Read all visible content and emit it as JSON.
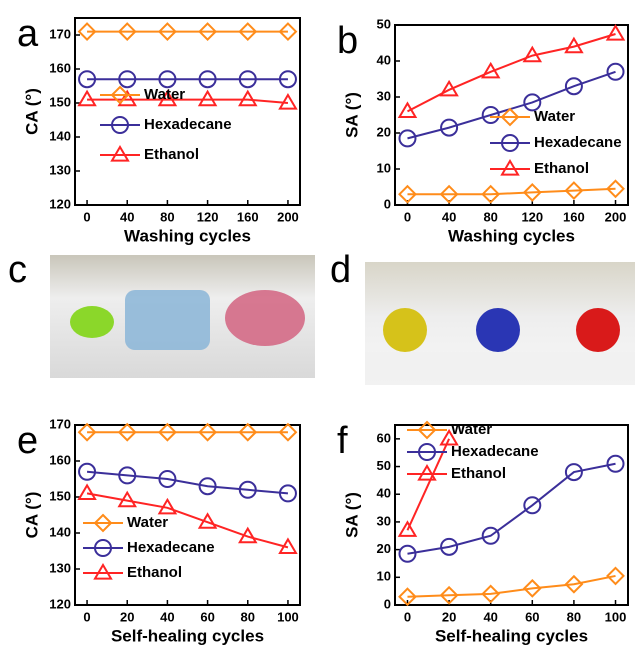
{
  "chart_data": [
    {
      "type": "line",
      "panel": "a",
      "xlabel": "Washing cycles",
      "ylabel": "CA (°)",
      "x": [
        0,
        40,
        80,
        120,
        160,
        200
      ],
      "xlim": [
        -12,
        212
      ],
      "xticks": [
        0,
        40,
        80,
        120,
        160,
        200
      ],
      "ylim": [
        120,
        175
      ],
      "yticks": [
        120,
        130,
        140,
        150,
        160,
        170
      ],
      "legend": "lower center",
      "series": [
        {
          "name": "Water",
          "color": "#ff8c1a",
          "marker": "diamond",
          "values": [
            171,
            171,
            171,
            171,
            171,
            171
          ]
        },
        {
          "name": "Hexadecane",
          "color": "#3b2f9a",
          "marker": "circle",
          "values": [
            157,
            157,
            157,
            157,
            157,
            157
          ]
        },
        {
          "name": "Ethanol",
          "color": "#ff2424",
          "marker": "triangle",
          "values": [
            151,
            151,
            151,
            151,
            151,
            150
          ]
        }
      ]
    },
    {
      "type": "line",
      "panel": "b",
      "xlabel": "Washing cycles",
      "ylabel": "SA (°)",
      "x": [
        0,
        40,
        80,
        120,
        160,
        200
      ],
      "xlim": [
        -12,
        212
      ],
      "xticks": [
        0,
        40,
        80,
        120,
        160,
        200
      ],
      "ylim": [
        0,
        50
      ],
      "yticks": [
        0,
        10,
        20,
        30,
        40,
        50
      ],
      "legend": "center right",
      "series": [
        {
          "name": "Water",
          "color": "#ff8c1a",
          "marker": "diamond",
          "values": [
            3,
            3,
            3,
            3.5,
            4,
            4.5
          ]
        },
        {
          "name": "Hexadecane",
          "color": "#3b2f9a",
          "marker": "circle",
          "values": [
            18.5,
            21.5,
            25,
            28.5,
            33,
            37
          ]
        },
        {
          "name": "Ethanol",
          "color": "#ff2424",
          "marker": "triangle",
          "values": [
            26,
            32,
            37,
            41.5,
            44,
            47.5
          ]
        }
      ]
    },
    {
      "type": "line",
      "panel": "e",
      "xlabel": "Self-healing cycles",
      "ylabel": "CA (°)",
      "x": [
        0,
        20,
        40,
        60,
        80,
        100
      ],
      "xlim": [
        -6,
        106
      ],
      "xticks": [
        0,
        20,
        40,
        60,
        80,
        100
      ],
      "ylim": [
        120,
        170
      ],
      "yticks": [
        120,
        130,
        140,
        150,
        160,
        170
      ],
      "legend": "lower left",
      "series": [
        {
          "name": "Water",
          "color": "#ff8c1a",
          "marker": "diamond",
          "values": [
            168,
            168,
            168,
            168,
            168,
            168
          ]
        },
        {
          "name": "Hexadecane",
          "color": "#3b2f9a",
          "marker": "circle",
          "values": [
            157,
            156,
            155,
            153,
            152,
            151
          ]
        },
        {
          "name": "Ethanol",
          "color": "#ff2424",
          "marker": "triangle",
          "values": [
            151,
            149,
            147,
            143,
            139,
            136
          ]
        }
      ]
    },
    {
      "type": "line",
      "panel": "f",
      "xlabel": "Self-healing cycles",
      "ylabel": "SA (°)",
      "x": [
        0,
        20,
        40,
        60,
        80,
        100
      ],
      "xlim": [
        -6,
        106
      ],
      "xticks": [
        0,
        20,
        40,
        60,
        80,
        100
      ],
      "ylim": [
        0,
        65
      ],
      "yticks": [
        0,
        10,
        20,
        30,
        40,
        50,
        60
      ],
      "legend": "upper left",
      "series": [
        {
          "name": "Water",
          "color": "#ff8c1a",
          "marker": "diamond",
          "values": [
            3,
            3.5,
            4,
            6,
            7.5,
            10.5
          ]
        },
        {
          "name": "Hexadecane",
          "color": "#3b2f9a",
          "marker": "circle",
          "values": [
            18.5,
            21,
            25,
            36,
            48,
            51
          ]
        },
        {
          "name": "Ethanol",
          "color": "#ff2424",
          "marker": "triangle",
          "values": [
            27,
            60,
            null,
            null,
            null,
            null
          ]
        }
      ]
    }
  ],
  "photos": [
    {
      "panel": "c"
    },
    {
      "panel": "d"
    }
  ]
}
